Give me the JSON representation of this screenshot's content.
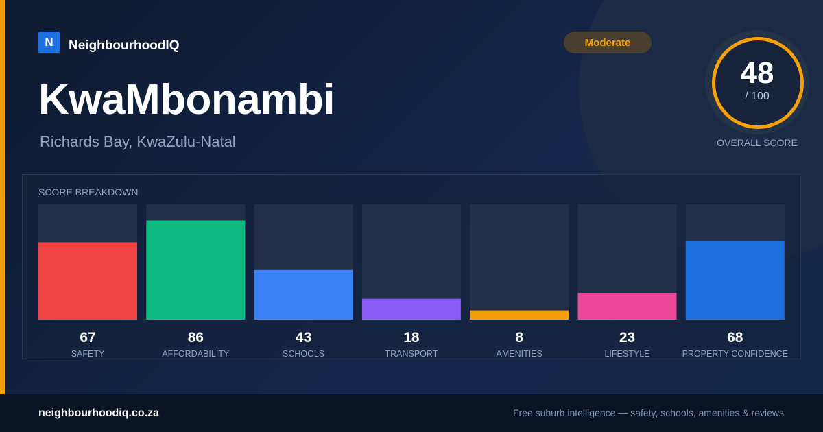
{
  "brand": {
    "logo_letter": "N",
    "name": "NeighbourhoodIQ"
  },
  "suburb": {
    "name": "KwaMbonambi",
    "location": "Richards Bay, KwaZulu-Natal"
  },
  "badge": {
    "label": "Moderate"
  },
  "overall": {
    "score": "48",
    "out_of": "/ 100",
    "label": "OVERALL SCORE"
  },
  "footer": {
    "site": "neighbourhoodiq.co.za",
    "tagline": "Free suburb intelligence — safety, schools, amenities & reviews"
  },
  "colors": {
    "accent": "#f5a10e",
    "brand_blue": "#1f6fe0"
  },
  "chart_data": {
    "type": "bar",
    "title": "SCORE BREAKDOWN",
    "categories": [
      "SAFETY",
      "AFFORDABILITY",
      "SCHOOLS",
      "TRANSPORT",
      "AMENITIES",
      "LIFESTYLE",
      "PROPERTY CONFIDENCE"
    ],
    "values": [
      67,
      86,
      43,
      18,
      8,
      23,
      68
    ],
    "colors": [
      "#ef4444",
      "#10b981",
      "#3b82f6",
      "#8b5cf6",
      "#f59e0b",
      "#ec4899",
      "#1d6fde"
    ],
    "ylim": [
      0,
      100
    ]
  }
}
